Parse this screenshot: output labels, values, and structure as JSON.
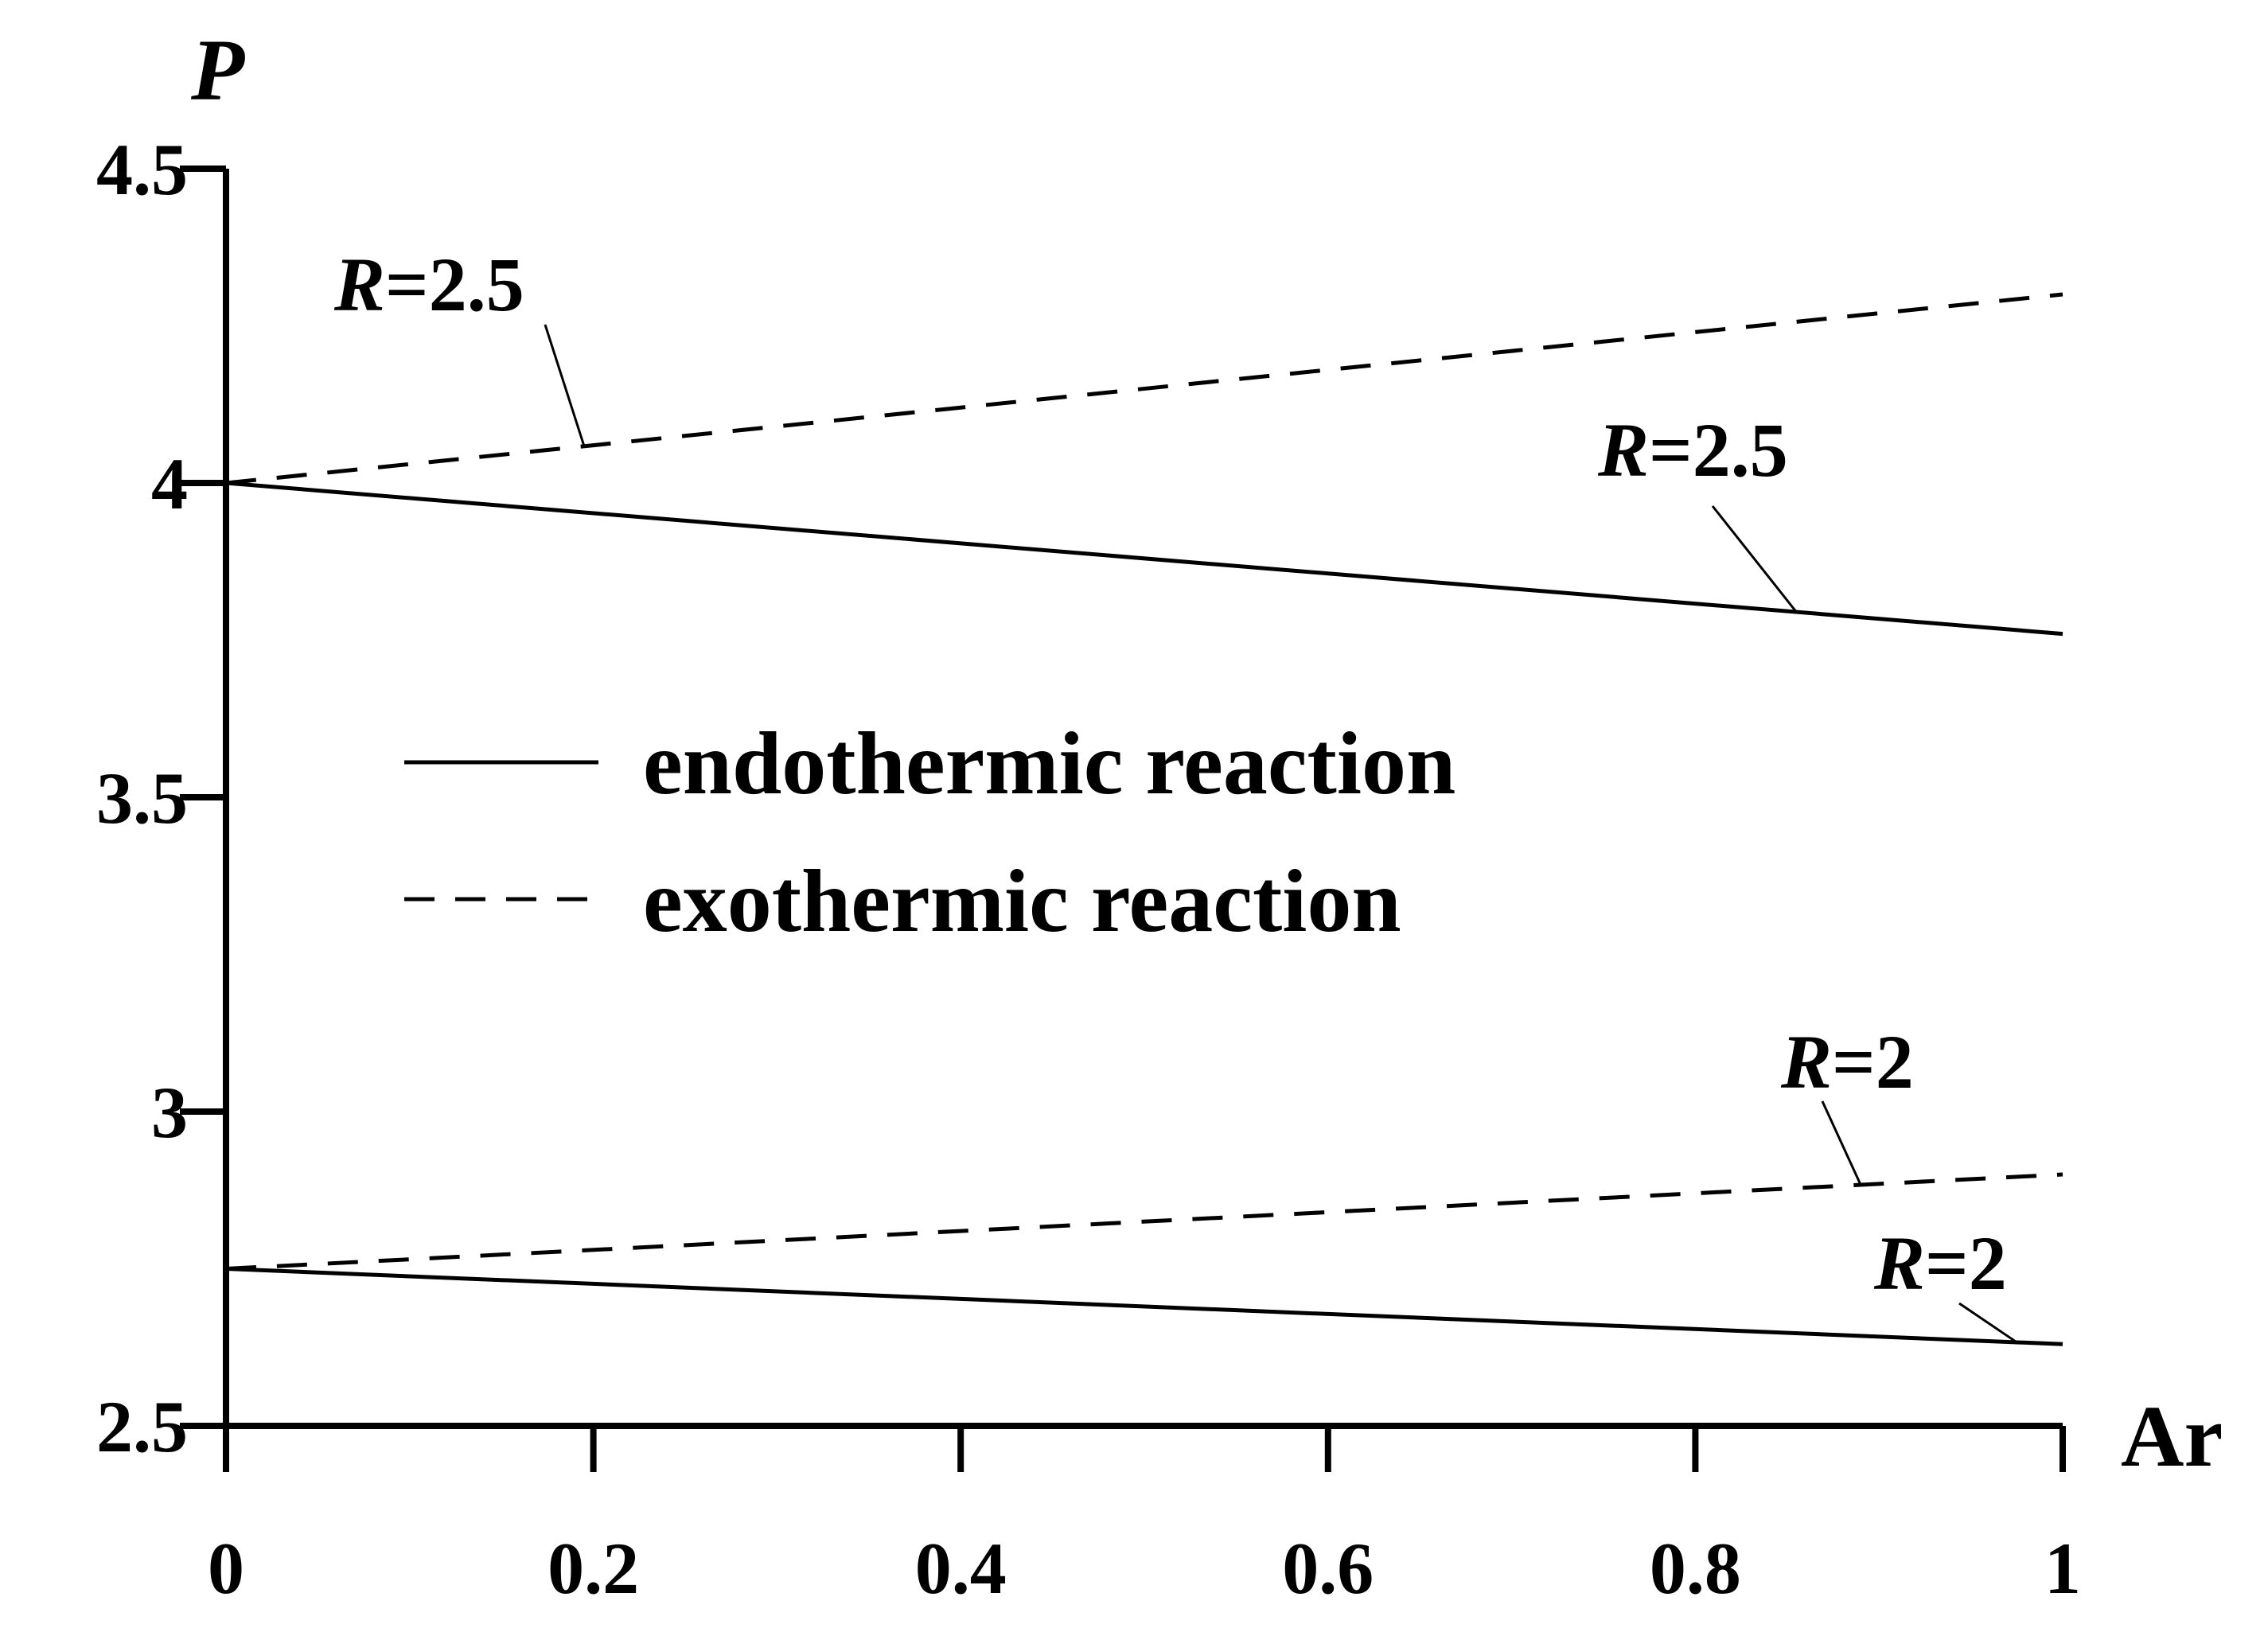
{
  "chart_data": {
    "type": "line",
    "xlabel": "Ar",
    "ylabel": "P",
    "xlim": [
      0,
      1
    ],
    "ylim": [
      2.5,
      4.5
    ],
    "x_ticks": [
      "0",
      "0.2",
      "0.4",
      "0.6",
      "0.8",
      "1"
    ],
    "y_ticks": [
      "2.5",
      "3",
      "3.5",
      "4",
      "4.5"
    ],
    "grid": false,
    "legend_position": "center",
    "legend": [
      {
        "label": "endothermic reaction",
        "style": "solid"
      },
      {
        "label": "exothermic reaction",
        "style": "dashed"
      }
    ],
    "series": [
      {
        "group": "exothermic reaction",
        "style": "dashed",
        "x": [
          0,
          1
        ],
        "y": [
          4.0,
          4.3
        ]
      },
      {
        "group": "endothermic reaction",
        "style": "solid",
        "x": [
          0,
          1
        ],
        "y": [
          4.0,
          3.76
        ]
      },
      {
        "group": "exothermic reaction",
        "style": "dashed",
        "x": [
          0,
          1
        ],
        "y": [
          2.75,
          2.9
        ]
      },
      {
        "group": "endothermic reaction",
        "style": "solid",
        "x": [
          0,
          1
        ],
        "y": [
          2.75,
          2.63
        ]
      }
    ],
    "annotations": [
      {
        "var": "R",
        "rest": "=2.5",
        "series": 0
      },
      {
        "var": "R",
        "rest": "=2.5",
        "series": 1
      },
      {
        "var": "R",
        "rest": "=2",
        "series": 2
      },
      {
        "var": "R",
        "rest": "=2",
        "series": 3
      }
    ]
  }
}
